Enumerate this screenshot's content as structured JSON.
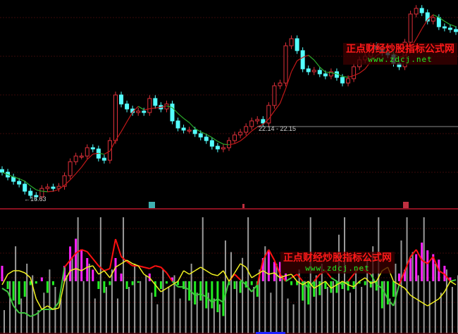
{
  "colors": {
    "background": "#000000",
    "candle_up": "#e0303a",
    "candle_down": "#54ffff",
    "ma_rising": "#c01818",
    "ma_falling": "#2aa82a",
    "separator": "#8a1020",
    "grid": "#3a0a0a",
    "hist_pos": "#ff22ff",
    "hist_neg": "#22ee22",
    "volume_bar": "#9a9a9a",
    "line_a_pos": "#ff1010",
    "line_a_neg": "#3ec83e",
    "line_b": "#f0f020",
    "marker_buy": "#3fb0b0",
    "marker_sell": "#c03040",
    "bottom_bar": "#2020ff"
  },
  "annotations": {
    "low_label": "←16.63",
    "range_label": "22.14 - 22.15"
  },
  "watermark": {
    "title": "正点财经炒股指标公式网",
    "url": "www.zdcj.net"
  },
  "markers": [
    "buy-marker",
    "small-marker",
    "sell-marker"
  ],
  "chart_data": [
    {
      "type": "candlestick",
      "panel": "price",
      "ma_overlay": true,
      "grid": true,
      "ylim": [
        15.93,
        31.8
      ],
      "close": [
        18.67,
        18.3,
        17.97,
        17.76,
        17.22,
        16.9,
        16.79,
        17.43,
        17.54,
        17.43,
        17.59,
        18.4,
        19.47,
        19.9,
        19.9,
        20.54,
        20.44,
        19.74,
        19.58,
        21.08,
        24.56,
        23.87,
        23.49,
        23.22,
        23.33,
        23.22,
        24.29,
        23.76,
        23.49,
        23.87,
        22.58,
        22.04,
        21.88,
        21.88,
        21.61,
        21.35,
        21.08,
        20.65,
        20.44,
        20.54,
        21.08,
        21.51,
        21.72,
        22.15,
        22.58,
        22.69,
        22.42,
        23.76,
        25.26,
        25.47,
        28.31,
        28.85,
        27.94,
        26.55,
        26.33,
        26.44,
        26.17,
        26.01,
        26.33,
        25.9,
        25.47,
        25.8,
        26.71,
        27.24,
        27.51,
        28.31,
        28.05,
        27.78,
        27.62,
        26.97,
        26.71,
        28.58,
        30.73,
        31.16,
        30.83,
        30.19,
        30.46,
        29.76,
        29.66,
        29.55,
        29.39
      ],
      "labeled_low": 16.63,
      "labeled_range": [
        22.14,
        22.15
      ]
    },
    {
      "type": "bar",
      "panel": "indicator",
      "grid": true,
      "histogram": [
        20,
        -10,
        -25,
        -30,
        -20,
        -5,
        -3,
        5,
        -15,
        -5,
        0,
        20,
        45,
        55,
        40,
        30,
        15,
        -10,
        -15,
        -5,
        30,
        10,
        -10,
        -5,
        -2,
        0,
        10,
        -20,
        -10,
        -3,
        5,
        -5,
        -10,
        -25,
        -30,
        -25,
        -35,
        -35,
        -40,
        -45,
        -5,
        -10,
        -15,
        -8,
        -5,
        -20,
        30,
        40,
        25,
        25,
        10,
        -5,
        -5,
        -25,
        -30,
        -20,
        -18,
        -10,
        -15,
        -15,
        -10,
        -12,
        -10,
        -3,
        -5,
        -8,
        -12,
        -35,
        -30,
        -20,
        10,
        15,
        30,
        35,
        50,
        40,
        35,
        28,
        20,
        5,
        0
      ],
      "volume": [
        20,
        45,
        75,
        30,
        60,
        50,
        20,
        35,
        55,
        40,
        30,
        50,
        65,
        100,
        45,
        60,
        30,
        100,
        40,
        55,
        30,
        100,
        40,
        60,
        45,
        50,
        35,
        25,
        55,
        40,
        50,
        30,
        45,
        60,
        35,
        100,
        35,
        30,
        25,
        80,
        70,
        45,
        65,
        100,
        40,
        55,
        75,
        35,
        60,
        50,
        30,
        25,
        55,
        45,
        100,
        50,
        60,
        40,
        45,
        85,
        100,
        35,
        55,
        40,
        65,
        75,
        100,
        45,
        30,
        60,
        80,
        100,
        70,
        50,
        100,
        45,
        60,
        35,
        55,
        40,
        50
      ],
      "line_a": [
        -10,
        -15,
        -35,
        -45,
        -45,
        -50,
        -47,
        -40,
        -40,
        -40,
        -30,
        20,
        30,
        40,
        45,
        42,
        32,
        22,
        15,
        18,
        60,
        35,
        28,
        22,
        22,
        20,
        18,
        22,
        20,
        12,
        0,
        -8,
        -8,
        -12,
        -20,
        -18,
        -22,
        -30,
        -25,
        -30,
        0,
        10,
        2,
        -5,
        -15,
        -5,
        30,
        45,
        30,
        10,
        0,
        5,
        10,
        0,
        -10,
        0,
        10,
        15,
        5,
        0,
        -5,
        0,
        10,
        20,
        15,
        10,
        -5,
        -10,
        -25,
        -35,
        -5,
        15,
        35,
        45,
        30,
        25,
        35,
        15,
        10,
        0,
        2
      ],
      "line_b": [
        -5,
        10,
        15,
        15,
        12,
        5,
        -25,
        -40,
        -35,
        -40,
        -38,
        0,
        15,
        18,
        15,
        20,
        22,
        10,
        15,
        5,
        20,
        25,
        30,
        25,
        22,
        10,
        5,
        -5,
        -15,
        -10,
        -5,
        0,
        15,
        10,
        15,
        20,
        15,
        10,
        8,
        15,
        0,
        12,
        25,
        20,
        5,
        10,
        15,
        10,
        12,
        5,
        8,
        10,
        0,
        -5,
        0,
        -10,
        -5,
        0,
        -10,
        -5,
        0,
        -5,
        -8,
        0,
        5,
        -3,
        0,
        15,
        20,
        0,
        -5,
        -10,
        -20,
        -25,
        -30,
        -35,
        -30,
        -25,
        -15,
        0,
        -5
      ]
    }
  ]
}
